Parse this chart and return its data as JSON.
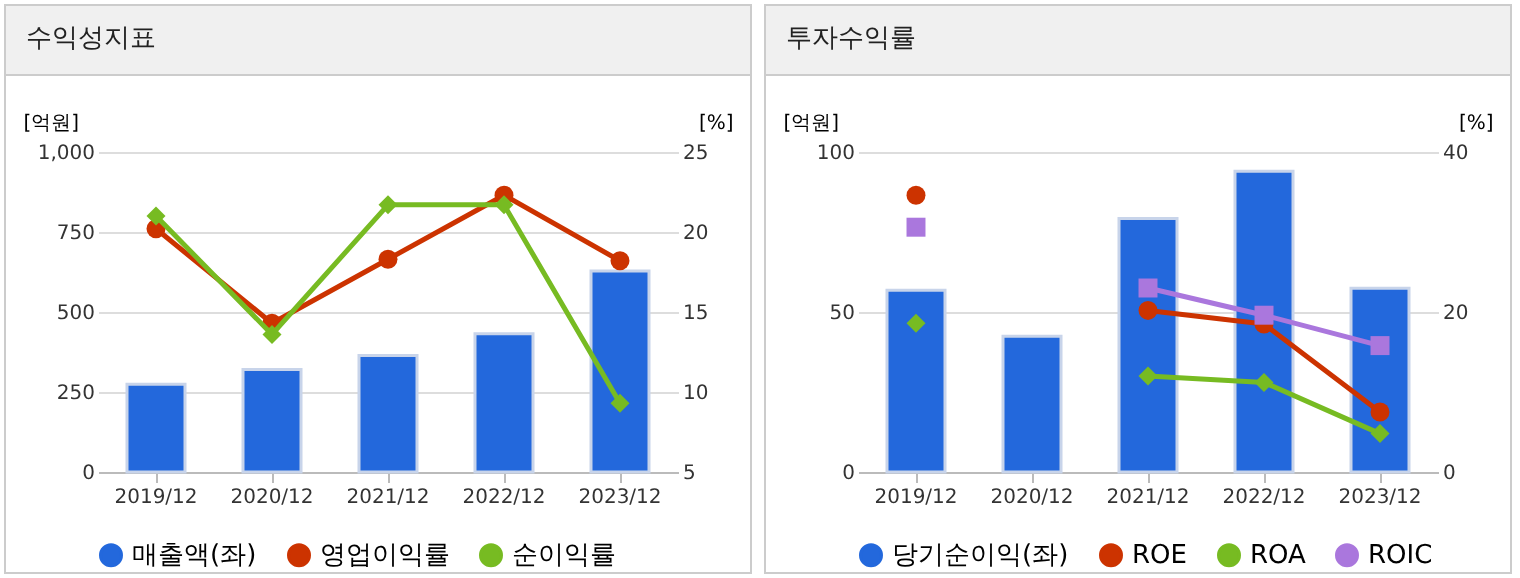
{
  "chart_data": [
    {
      "type": "bar",
      "title": "수익성지표",
      "ylabel": "[억원]",
      "y2label": "[%]",
      "categories": [
        "2019/12",
        "2020/12",
        "2021/12",
        "2022/12",
        "2023/12"
      ],
      "series": [
        {
          "name": "매출액(좌)",
          "color": "#2368dc",
          "values": [
            274,
            320,
            364,
            432,
            628
          ]
        },
        {
          "name": "영업이익률",
          "type": "line",
          "axis": "y2",
          "marker": "circle",
          "color": "#cc3300",
          "values": [
            20.2,
            14.3,
            18.3,
            22.3,
            18.2
          ]
        },
        {
          "name": "순이익률",
          "type": "line",
          "axis": "y2",
          "marker": "diamond",
          "color": "#77bb22",
          "values": [
            21.0,
            13.6,
            21.7,
            21.7,
            9.3
          ]
        }
      ],
      "ylim": [
        0,
        1000
      ],
      "yticks": [
        0,
        250,
        500,
        750,
        {
          "value": 1000,
          "label": "1,000"
        }
      ],
      "y2lim": [
        5,
        25
      ],
      "y2ticks": [
        5,
        10,
        15,
        20,
        25
      ],
      "grid": "y",
      "legend": "bottom"
    },
    {
      "type": "bar",
      "title": "투자수익률",
      "ylabel": "[억원]",
      "y2label": "[%]",
      "categories": [
        "2019/12",
        "2020/12",
        "2021/12",
        "2022/12",
        "2023/12"
      ],
      "series": [
        {
          "name": "당기순이익(좌)",
          "color": "#2368dc",
          "values": [
            56.8,
            42.4,
            79.2,
            94.0,
            57.4
          ]
        },
        {
          "name": "ROE",
          "type": "line",
          "axis": "y2",
          "marker": "circle",
          "color": "#cc3300",
          "values": [
            34.6,
            null,
            20.2,
            18.5,
            7.5
          ]
        },
        {
          "name": "ROA",
          "type": "line",
          "axis": "y2",
          "marker": "diamond",
          "color": "#77bb22",
          "values": [
            18.6,
            null,
            12.0,
            11.2,
            4.8
          ]
        },
        {
          "name": "ROIC",
          "type": "line",
          "axis": "y2",
          "marker": "square",
          "color": "#aa77dd",
          "values": [
            30.6,
            null,
            23.0,
            19.6,
            15.8
          ]
        }
      ],
      "ylim": [
        0,
        100
      ],
      "yticks": [
        0,
        50,
        100
      ],
      "y2lim": [
        0,
        40
      ],
      "y2ticks": [
        0,
        20,
        40
      ],
      "grid": "y",
      "legend": "bottom"
    }
  ]
}
